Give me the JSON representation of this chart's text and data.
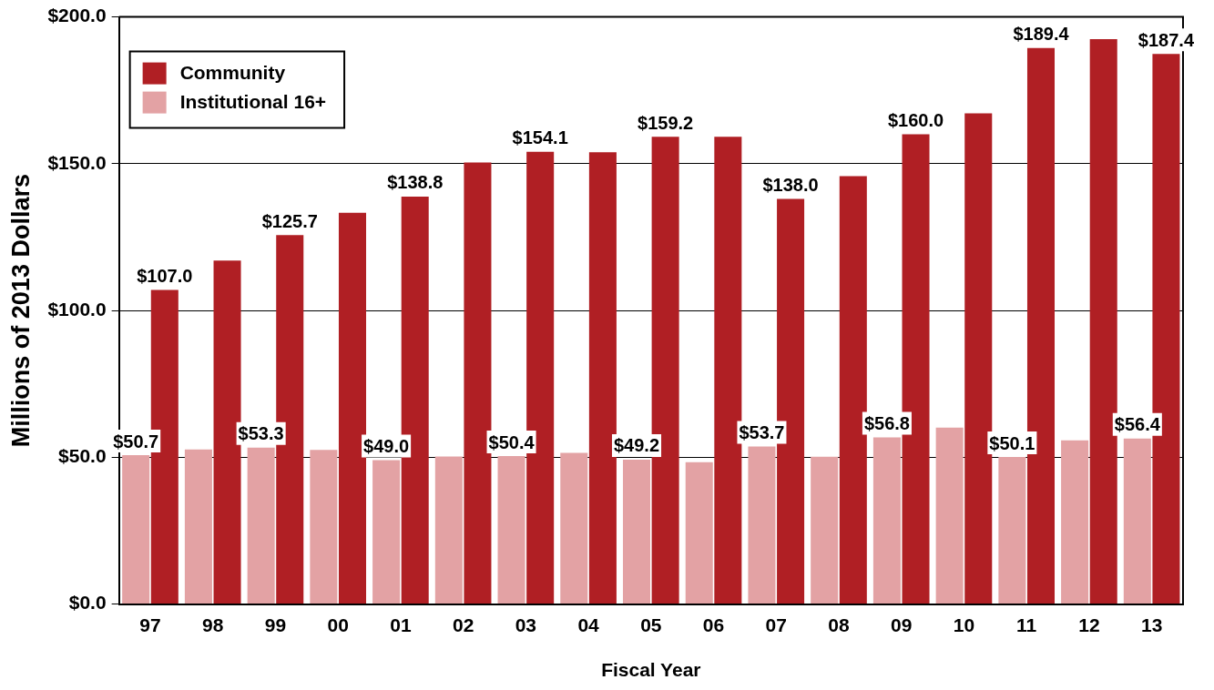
{
  "chart_data": {
    "type": "bar",
    "xlabel": "Fiscal Year",
    "ylabel": "Millions of 2013 Dollars",
    "categories": [
      "97",
      "98",
      "99",
      "00",
      "01",
      "02",
      "03",
      "04",
      "05",
      "06",
      "07",
      "08",
      "09",
      "10",
      "11",
      "12",
      "13"
    ],
    "series": [
      {
        "name": "Institutional 16+",
        "color": "#e3a2a4",
        "values": [
          50.7,
          52.7,
          53.3,
          52.5,
          49.0,
          50.3,
          50.4,
          51.5,
          49.2,
          48.3,
          53.7,
          50.2,
          56.8,
          60.1,
          50.1,
          55.8,
          56.4
        ],
        "value_labels": [
          "$50.7",
          null,
          "$53.3",
          null,
          "$49.0",
          null,
          "$50.4",
          null,
          "$49.2",
          null,
          "$53.7",
          null,
          "$56.8",
          null,
          "$50.1",
          null,
          "$56.4"
        ]
      },
      {
        "name": "Community",
        "color": "#b01f24",
        "values": [
          107.0,
          117.0,
          125.7,
          133.3,
          138.8,
          150.4,
          154.1,
          153.9,
          159.2,
          159.2,
          138.0,
          145.8,
          160.0,
          167.2,
          189.4,
          192.4,
          187.4
        ],
        "value_labels": [
          "$107.0",
          null,
          "$125.7",
          null,
          "$138.8",
          null,
          "$154.1",
          null,
          "$159.2",
          null,
          "$138.0",
          null,
          "$160.0",
          null,
          "$189.4",
          null,
          "$187.4"
        ]
      }
    ],
    "ylim": [
      0,
      200
    ],
    "yticks": [
      {
        "value": 0,
        "label": "$0.0"
      },
      {
        "value": 50,
        "label": "$50.0"
      },
      {
        "value": 100,
        "label": "$100.0"
      },
      {
        "value": 150,
        "label": "$150.0"
      },
      {
        "value": 200,
        "label": "$200.0"
      }
    ],
    "grid": "y",
    "legend": "top left"
  }
}
